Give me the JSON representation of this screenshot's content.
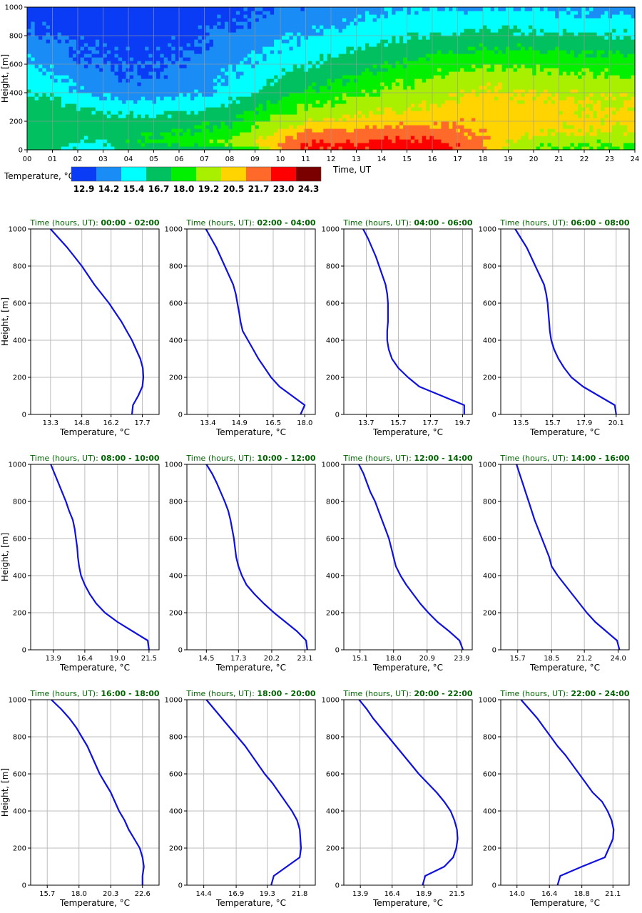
{
  "heatmap": {
    "type": "heatmap",
    "ylabel": "Height, [m]",
    "xlabel": "Time, UT",
    "x_ticks": [
      "00",
      "01",
      "02",
      "03",
      "04",
      "05",
      "06",
      "07",
      "08",
      "09",
      "10",
      "11",
      "12",
      "13",
      "14",
      "15",
      "16",
      "17",
      "18",
      "19",
      "20",
      "21",
      "22",
      "23",
      "24"
    ],
    "y_ticks": [
      "0",
      "200",
      "400",
      "600",
      "800",
      "1000"
    ],
    "xlim": [
      0,
      24
    ],
    "ylim": [
      0,
      1000
    ],
    "legend_title": "Temperature, °C",
    "levels": [
      "12.9",
      "14.2",
      "15.4",
      "16.7",
      "18.0",
      "19.2",
      "20.5",
      "21.7",
      "23.0",
      "24.3"
    ],
    "colors": [
      "#0a3cf5",
      "#1a8cf5",
      "#00ffff",
      "#00c060",
      "#00f000",
      "#a8f000",
      "#ffd400",
      "#ff6a2a",
      "#ff0000",
      "#7a0000"
    ],
    "hours": [
      0,
      1,
      2,
      3,
      4,
      5,
      6,
      7,
      8,
      9,
      10,
      11,
      12,
      13,
      14,
      15,
      16,
      17,
      18,
      19,
      20,
      21,
      22,
      23,
      24
    ],
    "heights": [
      0,
      50,
      100,
      150,
      200,
      300,
      400,
      500,
      600,
      700,
      800,
      900,
      1000
    ],
    "temps": [
      [
        17.3,
        17.0,
        16.3,
        16.0,
        16.7,
        16.7,
        16.7,
        16.7,
        17.3,
        18.8,
        21.3,
        23.1,
        23.2,
        23.3,
        23.4,
        23.6,
        23.7,
        22.8,
        21.9,
        20.4,
        19.4,
        19.1,
        19.0,
        18.9,
        18.8
      ],
      [
        17.3,
        17.2,
        16.6,
        16.5,
        18.2,
        18.2,
        18.5,
        18.9,
        19.5,
        20.5,
        21.8,
        23.0,
        23.1,
        23.2,
        23.4,
        23.4,
        23.4,
        22.7,
        21.9,
        20.5,
        19.6,
        19.4,
        19.3,
        19.2,
        19.2
      ],
      [
        17.5,
        17.5,
        17.1,
        17.1,
        17.8,
        17.9,
        18.2,
        18.3,
        18.6,
        19.9,
        21.1,
        22.2,
        22.3,
        22.5,
        22.6,
        22.7,
        22.8,
        22.2,
        21.6,
        21.0,
        20.6,
        20.4,
        20.3,
        20.3,
        20.3
      ],
      [
        17.6,
        17.6,
        17.3,
        17.3,
        17.5,
        17.6,
        17.8,
        17.9,
        18.2,
        19.4,
        20.4,
        21.3,
        21.5,
        21.7,
        21.8,
        22.0,
        22.0,
        21.7,
        21.4,
        21.1,
        20.9,
        20.7,
        20.6,
        20.6,
        20.6
      ],
      [
        17.7,
        17.7,
        17.4,
        17.3,
        17.2,
        17.3,
        17.5,
        17.6,
        17.9,
        18.9,
        19.8,
        20.5,
        20.7,
        20.9,
        21.1,
        21.3,
        21.4,
        21.5,
        21.4,
        21.2,
        21.0,
        20.9,
        20.8,
        20.8,
        20.8
      ],
      [
        17.4,
        17.3,
        16.8,
        16.3,
        16.0,
        16.1,
        16.3,
        16.5,
        17.0,
        17.8,
        18.6,
        19.3,
        19.6,
        19.9,
        20.2,
        20.4,
        20.6,
        21.0,
        21.2,
        21.0,
        20.8,
        20.7,
        20.7,
        20.6,
        20.6
      ],
      [
        16.7,
        16.3,
        15.5,
        15.0,
        14.8,
        14.8,
        15.0,
        15.3,
        16.0,
        16.8,
        17.5,
        18.2,
        18.6,
        19.0,
        19.4,
        19.7,
        19.9,
        20.3,
        20.7,
        20.6,
        20.5,
        20.4,
        20.3,
        20.2,
        20.2
      ],
      [
        16.1,
        15.6,
        14.9,
        14.5,
        14.3,
        14.3,
        14.6,
        14.9,
        15.5,
        16.2,
        16.8,
        17.3,
        17.8,
        18.2,
        18.7,
        19.0,
        19.3,
        19.6,
        19.9,
        19.9,
        19.7,
        19.6,
        19.5,
        19.4,
        19.3
      ],
      [
        15.6,
        15.0,
        14.4,
        14.2,
        14.1,
        14.1,
        14.4,
        14.7,
        15.2,
        15.7,
        16.2,
        16.6,
        17.0,
        17.4,
        17.8,
        18.2,
        18.5,
        18.8,
        19.0,
        19.0,
        18.9,
        18.8,
        18.7,
        18.6,
        18.6
      ],
      [
        15.0,
        14.6,
        14.2,
        14.0,
        13.9,
        13.9,
        14.1,
        14.4,
        14.8,
        15.2,
        15.6,
        15.9,
        16.3,
        16.7,
        17.1,
        17.4,
        17.7,
        17.9,
        18.1,
        18.1,
        18.0,
        17.9,
        17.8,
        17.8,
        17.7
      ],
      [
        14.5,
        14.3,
        14.0,
        13.8,
        13.7,
        13.7,
        13.9,
        14.2,
        14.5,
        14.8,
        15.1,
        15.4,
        15.7,
        16.0,
        16.4,
        16.7,
        16.9,
        17.0,
        17.1,
        17.1,
        17.0,
        16.9,
        16.8,
        16.8,
        16.7
      ],
      [
        13.8,
        13.8,
        13.6,
        13.5,
        13.4,
        13.4,
        13.6,
        13.9,
        14.1,
        14.4,
        14.6,
        14.9,
        15.1,
        15.4,
        15.7,
        16.0,
        16.1,
        16.2,
        16.3,
        16.2,
        16.1,
        16.0,
        15.9,
        15.9,
        15.8
      ],
      [
        13.2,
        13.3,
        13.2,
        13.2,
        13.2,
        13.2,
        13.3,
        13.5,
        13.8,
        14.0,
        14.2,
        14.4,
        14.6,
        14.8,
        15.1,
        15.3,
        15.4,
        15.4,
        15.4,
        15.3,
        15.2,
        15.1,
        15.0,
        14.9,
        14.8
      ]
    ]
  },
  "profiles_common": {
    "ylabel": "Height, [m]",
    "xlabel": "Temperature, °C",
    "title_prefix": "Time (hours, UT): ",
    "y_ticks": [
      "0",
      "200",
      "400",
      "600",
      "800",
      "1000"
    ],
    "ylim": [
      0,
      1000
    ],
    "heights": [
      0,
      50,
      100,
      150,
      200,
      250,
      300,
      350,
      400,
      450,
      500,
      550,
      600,
      650,
      700,
      750,
      800,
      850,
      900,
      950,
      1000
    ]
  },
  "profiles": [
    {
      "title": "00:00 - 02:00",
      "x_ticks": [
        "13.3",
        "14.8",
        "16.2",
        "17.7"
      ],
      "xlim": [
        12.35,
        18.5
      ],
      "temps": [
        17.2,
        17.25,
        17.5,
        17.7,
        17.75,
        17.72,
        17.6,
        17.4,
        17.2,
        16.95,
        16.7,
        16.4,
        16.1,
        15.75,
        15.4,
        15.1,
        14.8,
        14.45,
        14.1,
        13.7,
        13.3
      ]
    },
    {
      "title": "02:00 - 04:00",
      "x_ticks": [
        "13.4",
        "14.9",
        "16.5",
        "18.0"
      ],
      "xlim": [
        12.4,
        18.5
      ],
      "temps": [
        17.8,
        18.0,
        17.4,
        16.8,
        16.4,
        16.1,
        15.8,
        15.55,
        15.3,
        15.05,
        14.95,
        14.88,
        14.8,
        14.72,
        14.6,
        14.4,
        14.2,
        14.0,
        13.8,
        13.55,
        13.3
      ]
    },
    {
      "title": "04:00 - 06:00",
      "x_ticks": [
        "13.7",
        "15.7",
        "17.7",
        "19.7"
      ],
      "xlim": [
        12.3,
        20.3
      ],
      "temps": [
        19.8,
        19.8,
        18.4,
        17.0,
        16.3,
        15.7,
        15.3,
        15.1,
        15.0,
        15.0,
        15.05,
        15.05,
        15.05,
        15.0,
        14.9,
        14.7,
        14.5,
        14.3,
        14.05,
        13.8,
        13.5
      ]
    },
    {
      "title": "06:00 - 08:00",
      "x_ticks": [
        "13.5",
        "15.7",
        "17.9",
        "20.1"
      ],
      "xlim": [
        12.1,
        21.0
      ],
      "temps": [
        20.1,
        20.0,
        18.9,
        17.8,
        17.0,
        16.5,
        16.1,
        15.8,
        15.6,
        15.5,
        15.45,
        15.4,
        15.35,
        15.25,
        15.1,
        14.8,
        14.5,
        14.2,
        13.9,
        13.5,
        13.1
      ]
    },
    {
      "title": "08:00 - 10:00",
      "x_ticks": [
        "13.9",
        "16.4",
        "19.0",
        "21.5"
      ],
      "xlim": [
        12.1,
        22.3
      ],
      "temps": [
        21.5,
        21.4,
        20.2,
        19.0,
        18.0,
        17.3,
        16.8,
        16.4,
        16.1,
        15.95,
        15.85,
        15.8,
        15.7,
        15.6,
        15.45,
        15.15,
        14.9,
        14.6,
        14.3,
        14.0,
        13.7
      ]
    },
    {
      "title": "10:00 - 12:00",
      "x_ticks": [
        "14.5",
        "17.3",
        "20.2",
        "23.1"
      ],
      "xlim": [
        12.8,
        24.0
      ],
      "temps": [
        23.3,
        23.2,
        22.4,
        21.4,
        20.4,
        19.5,
        18.7,
        18.0,
        17.6,
        17.3,
        17.1,
        17.0,
        16.9,
        16.75,
        16.6,
        16.4,
        16.1,
        15.75,
        15.4,
        15.0,
        14.5
      ]
    },
    {
      "title": "12:00 - 14:00",
      "x_ticks": [
        "15.1",
        "18.0",
        "20.9",
        "23.9"
      ],
      "xlim": [
        13.7,
        24.8
      ],
      "temps": [
        24.0,
        23.7,
        22.8,
        21.8,
        21.0,
        20.3,
        19.7,
        19.1,
        18.6,
        18.2,
        18.0,
        17.8,
        17.6,
        17.3,
        17.0,
        16.7,
        16.4,
        16.0,
        15.7,
        15.4,
        15.0
      ]
    },
    {
      "title": "14:00 - 16:00",
      "x_ticks": [
        "15.7",
        "18.5",
        "21.2",
        "24.0"
      ],
      "xlim": [
        14.3,
        24.9
      ],
      "temps": [
        24.1,
        23.9,
        23.0,
        22.1,
        21.4,
        20.8,
        20.2,
        19.6,
        19.0,
        18.5,
        18.3,
        18.0,
        17.7,
        17.4,
        17.1,
        16.85,
        16.6,
        16.35,
        16.1,
        15.85,
        15.6
      ]
    },
    {
      "title": "16:00 - 18:00",
      "x_ticks": [
        "15.7",
        "18.0",
        "20.3",
        "22.6"
      ],
      "xlim": [
        14.5,
        23.8
      ],
      "temps": [
        22.6,
        22.6,
        22.7,
        22.6,
        22.4,
        22.0,
        21.6,
        21.3,
        20.9,
        20.6,
        20.3,
        19.9,
        19.5,
        19.2,
        18.9,
        18.6,
        18.2,
        17.8,
        17.3,
        16.7,
        16.0
      ]
    },
    {
      "title": "18:00 - 20:00",
      "x_ticks": [
        "14.4",
        "16.9",
        "19.3",
        "21.8"
      ],
      "xlim": [
        13.1,
        23.0
      ],
      "temps": [
        19.6,
        19.8,
        20.8,
        21.8,
        21.9,
        21.85,
        21.8,
        21.6,
        21.2,
        20.7,
        20.2,
        19.7,
        19.1,
        18.6,
        18.1,
        17.6,
        17.0,
        16.4,
        15.8,
        15.2,
        14.6
      ]
    },
    {
      "title": "20:00 - 22:00",
      "x_ticks": [
        "13.9",
        "16.4",
        "18.9",
        "21.5"
      ],
      "xlim": [
        12.6,
        22.7
      ],
      "temps": [
        18.8,
        19.0,
        20.5,
        21.2,
        21.45,
        21.55,
        21.5,
        21.3,
        21.0,
        20.5,
        19.9,
        19.2,
        18.5,
        17.9,
        17.3,
        16.7,
        16.1,
        15.5,
        14.9,
        14.4,
        13.8
      ]
    },
    {
      "title": "22:00 - 24:00",
      "x_ticks": [
        "14.0",
        "16.4",
        "18.8",
        "21.1"
      ],
      "xlim": [
        12.8,
        22.3
      ],
      "temps": [
        17.0,
        17.2,
        18.8,
        20.5,
        20.8,
        21.1,
        21.15,
        21.0,
        20.7,
        20.3,
        19.6,
        19.1,
        18.6,
        18.1,
        17.6,
        17.0,
        16.5,
        16.0,
        15.5,
        14.9,
        14.3
      ]
    }
  ]
}
